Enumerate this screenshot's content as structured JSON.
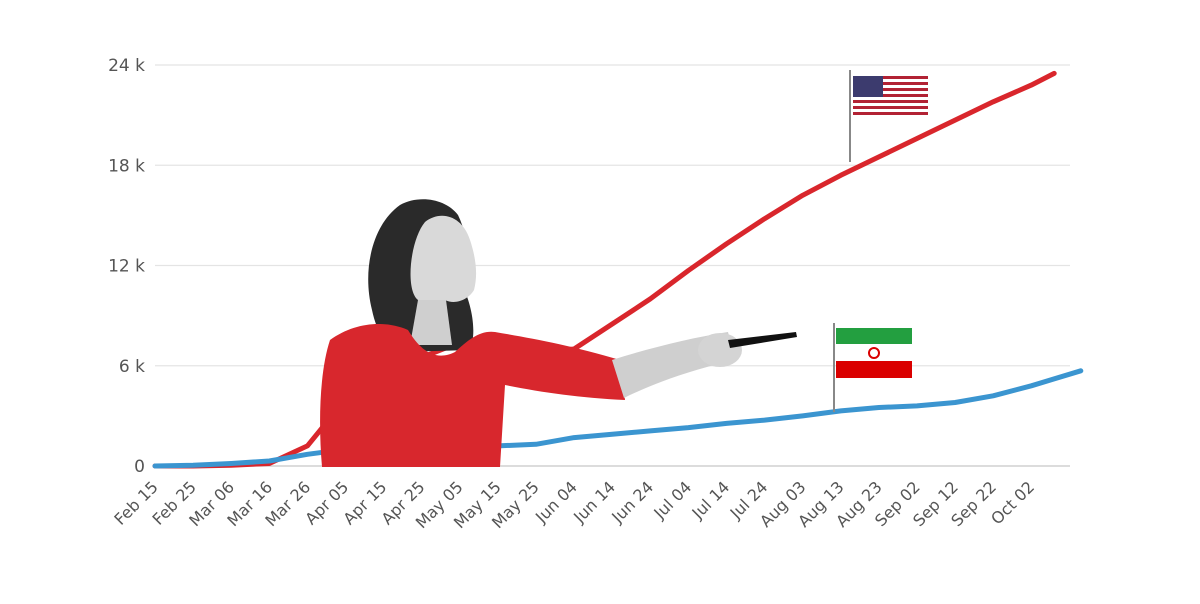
{
  "chart_data": {
    "type": "line",
    "title": "",
    "xlabel": "",
    "ylabel": "",
    "ylim": [
      0,
      24000
    ],
    "yticks": [
      {
        "value": 0,
        "label": "0"
      },
      {
        "value": 6000,
        "label": "6 k"
      },
      {
        "value": 12000,
        "label": "12 k"
      },
      {
        "value": 18000,
        "label": "18 k"
      },
      {
        "value": 24000,
        "label": "24 k"
      }
    ],
    "categories": [
      "Feb 15",
      "Feb 25",
      "Mar 06",
      "Mar 16",
      "Mar 26",
      "Apr 05",
      "Apr 15",
      "Apr 25",
      "May 05",
      "May 15",
      "May 25",
      "Jun 04",
      "Jun 14",
      "Jun 24",
      "Jul 04",
      "Jul 14",
      "Jul 24",
      "Aug 03",
      "Aug 13",
      "Aug 23",
      "Sep 02",
      "Sep 12",
      "Sep 22",
      "Oct 02"
    ],
    "x_end": 24.4,
    "grid": true,
    "legend": "none",
    "series": [
      {
        "color": "#d9262c",
        "flag": "usa-flag",
        "values": [
          [
            0,
            0
          ],
          [
            1,
            0
          ],
          [
            2,
            50
          ],
          [
            3,
            150
          ],
          [
            4,
            1200
          ],
          [
            5,
            4000
          ],
          [
            6,
            5300
          ],
          [
            7,
            6500
          ],
          [
            8,
            7400
          ],
          [
            9,
            7000
          ],
          [
            10,
            6800
          ],
          [
            11,
            7000
          ],
          [
            12,
            8500
          ],
          [
            13,
            10000
          ],
          [
            14,
            11700
          ],
          [
            15,
            13300
          ],
          [
            16,
            14800
          ],
          [
            17,
            16200
          ],
          [
            18,
            17400
          ],
          [
            19,
            18500
          ],
          [
            20,
            19600
          ],
          [
            21,
            20700
          ],
          [
            22,
            21800
          ],
          [
            23,
            22800
          ],
          [
            23.6,
            23500
          ]
        ]
      },
      {
        "color": "#3b95d0",
        "flag": "iran-flag",
        "values": [
          [
            0,
            0
          ],
          [
            1,
            50
          ],
          [
            2,
            150
          ],
          [
            3,
            300
          ],
          [
            4,
            700
          ],
          [
            5,
            1000
          ],
          [
            6,
            1100
          ],
          [
            7,
            1300
          ],
          [
            8,
            1300
          ],
          [
            9,
            1200
          ],
          [
            10,
            1300
          ],
          [
            11,
            1700
          ],
          [
            12,
            1900
          ],
          [
            13,
            2100
          ],
          [
            14,
            2300
          ],
          [
            15,
            2550
          ],
          [
            16,
            2750
          ],
          [
            17,
            3000
          ],
          [
            18,
            3300
          ],
          [
            19,
            3500
          ],
          [
            20,
            3600
          ],
          [
            21,
            3800
          ],
          [
            22,
            4200
          ],
          [
            23,
            4800
          ],
          [
            24.3,
            5700
          ]
        ]
      }
    ]
  }
}
